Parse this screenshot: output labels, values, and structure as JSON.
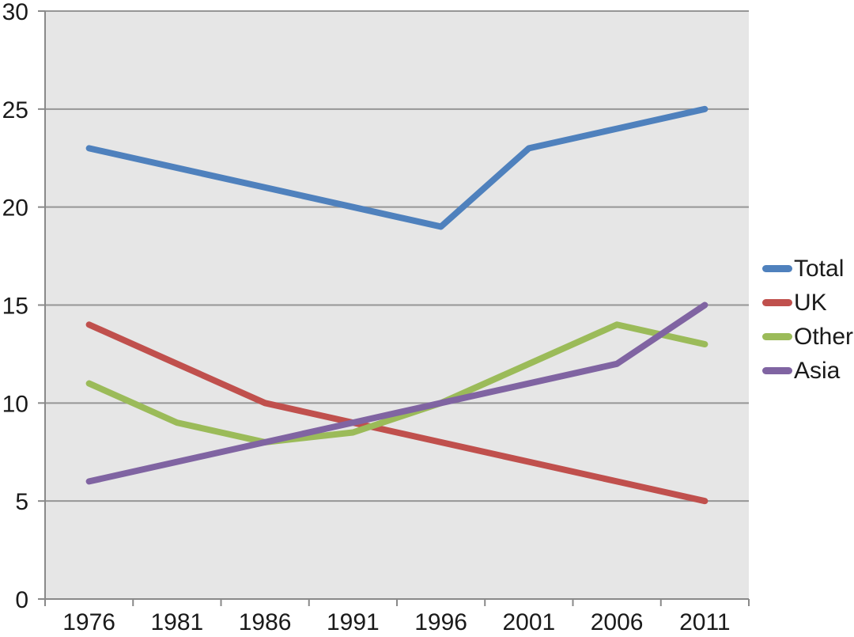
{
  "chart_data": {
    "type": "line",
    "title": "",
    "xlabel": "",
    "ylabel": "",
    "categories": [
      "1976",
      "1981",
      "1986",
      "1991",
      "1996",
      "2001",
      "2006",
      "2011"
    ],
    "series": [
      {
        "name": "Total",
        "color": "#4F81BD",
        "values": [
          23,
          22,
          21,
          20,
          19,
          23,
          24,
          25
        ]
      },
      {
        "name": "UK",
        "color": "#C0504D",
        "values": [
          14,
          12,
          10,
          9,
          8,
          7,
          6,
          5
        ]
      },
      {
        "name": "Other",
        "color": "#9BBB59",
        "values": [
          11,
          9,
          8,
          8.5,
          10,
          12,
          14,
          13
        ]
      },
      {
        "name": "Asia",
        "color": "#8064A2",
        "values": [
          6,
          7,
          8,
          9,
          10,
          11,
          12,
          15
        ]
      }
    ],
    "ylim": [
      0,
      30
    ],
    "y_ticks": [
      0,
      5,
      10,
      15,
      20,
      25,
      30
    ],
    "grid": true,
    "legend_position": "right"
  },
  "style": {
    "plot_background": "#E6E6E6",
    "gridline_color": "#969696",
    "axis_color": "#898989",
    "label_color": "#1A1A1A",
    "page_background": "#FFFFFF",
    "line_width": 8
  }
}
